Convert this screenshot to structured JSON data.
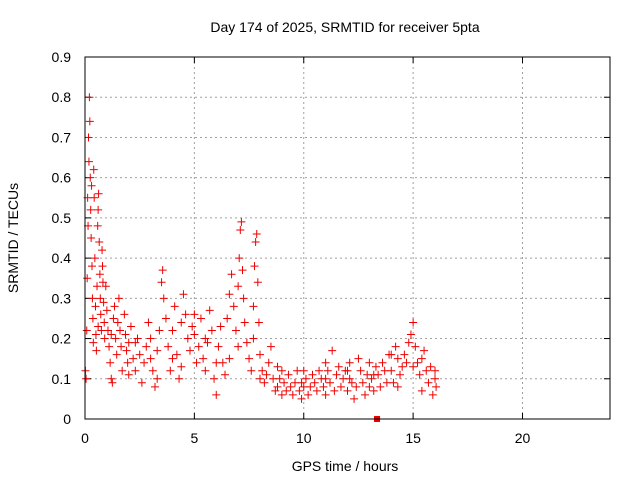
{
  "chart_data": {
    "type": "scatter",
    "title": "Day 174 of 2025, SRMTID for receiver 5pta",
    "xlabel": "GPS time / hours",
    "ylabel": "SRMTID / TECUs",
    "xlim": [
      0,
      24
    ],
    "ylim": [
      0,
      0.9
    ],
    "xticks": [
      0,
      5,
      10,
      15,
      20
    ],
    "yticks": [
      0,
      0.1,
      0.2,
      0.3,
      0.4,
      0.5,
      0.6,
      0.7,
      0.8,
      0.9
    ],
    "grid": true,
    "marker": "+",
    "color": "#ee0000",
    "series": [
      {
        "name": "SRMTID",
        "points": [
          [
            0.02,
            0.12
          ],
          [
            0.05,
            0.1
          ],
          [
            0.08,
            0.22
          ],
          [
            0.1,
            0.35
          ],
          [
            0.12,
            0.55
          ],
          [
            0.14,
            0.48
          ],
          [
            0.16,
            0.7
          ],
          [
            0.18,
            0.64
          ],
          [
            0.2,
            0.8
          ],
          [
            0.22,
            0.74
          ],
          [
            0.24,
            0.6
          ],
          [
            0.26,
            0.52
          ],
          [
            0.28,
            0.45
          ],
          [
            0.3,
            0.58
          ],
          [
            0.32,
            0.38
          ],
          [
            0.34,
            0.3
          ],
          [
            0.36,
            0.25
          ],
          [
            0.38,
            0.19
          ],
          [
            0.4,
            0.62
          ],
          [
            0.42,
            0.55
          ],
          [
            0.45,
            0.4
          ],
          [
            0.48,
            0.28
          ],
          [
            0.5,
            0.21
          ],
          [
            0.52,
            0.17
          ],
          [
            0.55,
            0.33
          ],
          [
            0.58,
            0.48
          ],
          [
            0.6,
            0.52
          ],
          [
            0.62,
            0.56
          ],
          [
            0.65,
            0.44
          ],
          [
            0.68,
            0.36
          ],
          [
            0.7,
            0.3
          ],
          [
            0.72,
            0.26
          ],
          [
            0.75,
            0.22
          ],
          [
            0.78,
            0.42
          ],
          [
            0.8,
            0.38
          ],
          [
            0.82,
            0.34
          ],
          [
            0.85,
            0.29
          ],
          [
            0.88,
            0.24
          ],
          [
            0.9,
            0.2
          ],
          [
            0.95,
            0.33
          ],
          [
            1.0,
            0.27
          ],
          [
            1.05,
            0.22
          ],
          [
            1.1,
            0.18
          ],
          [
            1.15,
            0.14
          ],
          [
            1.2,
            0.1
          ],
          [
            1.25,
            0.09
          ],
          [
            1.3,
            0.25
          ],
          [
            1.35,
            0.28
          ],
          [
            1.4,
            0.2
          ],
          [
            1.45,
            0.16
          ],
          [
            1.5,
            0.24
          ],
          [
            1.55,
            0.3
          ],
          [
            1.6,
            0.22
          ],
          [
            1.65,
            0.18
          ],
          [
            1.7,
            0.12
          ],
          [
            1.8,
            0.26
          ],
          [
            1.85,
            0.21
          ],
          [
            1.9,
            0.17
          ],
          [
            1.95,
            0.14
          ],
          [
            2.0,
            0.19
          ],
          [
            2.1,
            0.23
          ],
          [
            2.2,
            0.15
          ],
          [
            2.3,
            0.12
          ],
          [
            2.4,
            0.2
          ],
          [
            2.5,
            0.16
          ],
          [
            2.6,
            0.09
          ],
          [
            2.7,
            0.14
          ],
          [
            2.8,
            0.18
          ],
          [
            2.9,
            0.24
          ],
          [
            3.0,
            0.2
          ],
          [
            3.1,
            0.12
          ],
          [
            3.2,
            0.08
          ],
          [
            3.3,
            0.17
          ],
          [
            3.4,
            0.22
          ],
          [
            3.5,
            0.34
          ],
          [
            3.55,
            0.37
          ],
          [
            3.6,
            0.3
          ],
          [
            3.7,
            0.25
          ],
          [
            3.8,
            0.18
          ],
          [
            3.9,
            0.12
          ],
          [
            4.0,
            0.22
          ],
          [
            4.1,
            0.28
          ],
          [
            4.2,
            0.16
          ],
          [
            4.3,
            0.1
          ],
          [
            4.4,
            0.24
          ],
          [
            4.5,
            0.31
          ],
          [
            4.6,
            0.26
          ],
          [
            4.7,
            0.2
          ],
          [
            4.8,
            0.17
          ],
          [
            4.9,
            0.23
          ],
          [
            5.0,
            0.21
          ],
          [
            5.1,
            0.14
          ],
          [
            5.2,
            0.18
          ],
          [
            5.3,
            0.25
          ],
          [
            5.4,
            0.15
          ],
          [
            5.5,
            0.12
          ],
          [
            5.6,
            0.19
          ],
          [
            5.7,
            0.27
          ],
          [
            5.8,
            0.22
          ],
          [
            5.9,
            0.1
          ],
          [
            6.0,
            0.06
          ],
          [
            6.1,
            0.18
          ],
          [
            6.2,
            0.23
          ],
          [
            6.3,
            0.14
          ],
          [
            6.4,
            0.11
          ],
          [
            6.5,
            0.25
          ],
          [
            6.6,
            0.31
          ],
          [
            6.7,
            0.36
          ],
          [
            6.8,
            0.28
          ],
          [
            6.9,
            0.22
          ],
          [
            7.0,
            0.33
          ],
          [
            7.05,
            0.4
          ],
          [
            7.1,
            0.47
          ],
          [
            7.15,
            0.49
          ],
          [
            7.2,
            0.37
          ],
          [
            7.25,
            0.3
          ],
          [
            7.3,
            0.24
          ],
          [
            7.4,
            0.19
          ],
          [
            7.5,
            0.15
          ],
          [
            7.6,
            0.12
          ],
          [
            7.7,
            0.28
          ],
          [
            7.75,
            0.38
          ],
          [
            7.8,
            0.44
          ],
          [
            7.85,
            0.46
          ],
          [
            7.9,
            0.34
          ],
          [
            7.95,
            0.24
          ],
          [
            8.0,
            0.16
          ],
          [
            8.1,
            0.12
          ],
          [
            8.2,
            0.09
          ],
          [
            8.3,
            0.11
          ],
          [
            8.4,
            0.14
          ],
          [
            8.5,
            0.18
          ],
          [
            8.6,
            0.1
          ],
          [
            8.7,
            0.07
          ],
          [
            8.8,
            0.13
          ],
          [
            8.9,
            0.1
          ],
          [
            9.0,
            0.12
          ],
          [
            9.1,
            0.09
          ],
          [
            9.2,
            0.07
          ],
          [
            9.3,
            0.11
          ],
          [
            9.4,
            0.08
          ],
          [
            9.5,
            0.06
          ],
          [
            9.6,
            0.09
          ],
          [
            9.7,
            0.12
          ],
          [
            9.8,
            0.07
          ],
          [
            9.9,
            0.05
          ],
          [
            10.0,
            0.08
          ],
          [
            10.1,
            0.1
          ],
          [
            10.2,
            0.06
          ],
          [
            10.3,
            0.08
          ],
          [
            10.4,
            0.11
          ],
          [
            10.5,
            0.09
          ],
          [
            10.6,
            0.07
          ],
          [
            10.7,
            0.12
          ],
          [
            10.8,
            0.1
          ],
          [
            10.9,
            0.08
          ],
          [
            11.0,
            0.14
          ],
          [
            11.1,
            0.12
          ],
          [
            11.2,
            0.09
          ],
          [
            11.3,
            0.17
          ],
          [
            11.4,
            0.07
          ],
          [
            11.5,
            0.11
          ],
          [
            11.6,
            0.13
          ],
          [
            11.7,
            0.08
          ],
          [
            11.8,
            0.1
          ],
          [
            11.9,
            0.12
          ],
          [
            12.0,
            0.07
          ],
          [
            12.1,
            0.14
          ],
          [
            12.2,
            0.09
          ],
          [
            12.3,
            0.05
          ],
          [
            12.4,
            0.08
          ],
          [
            12.5,
            0.15
          ],
          [
            12.6,
            0.12
          ],
          [
            12.7,
            0.09
          ],
          [
            12.8,
            0.06
          ],
          [
            12.9,
            0.11
          ],
          [
            13.0,
            0.14
          ],
          [
            13.1,
            0.1
          ],
          [
            13.2,
            0.07
          ],
          [
            13.3,
            0.13
          ],
          [
            13.4,
            0.11
          ],
          [
            13.5,
            0.08
          ],
          [
            13.6,
            0.14
          ],
          [
            13.7,
            0.12
          ],
          [
            13.8,
            0.09
          ],
          [
            13.9,
            0.16
          ],
          [
            14.0,
            0.12
          ],
          [
            14.1,
            0.09
          ],
          [
            14.2,
            0.18
          ],
          [
            14.3,
            0.15
          ],
          [
            14.4,
            0.11
          ],
          [
            14.5,
            0.13
          ],
          [
            14.6,
            0.16
          ],
          [
            14.7,
            0.14
          ],
          [
            14.8,
            0.19
          ],
          [
            14.9,
            0.21
          ],
          [
            15.0,
            0.24
          ],
          [
            15.1,
            0.18
          ],
          [
            15.2,
            0.14
          ],
          [
            15.3,
            0.11
          ],
          [
            15.4,
            0.15
          ],
          [
            15.5,
            0.17
          ],
          [
            15.6,
            0.12
          ],
          [
            15.7,
            0.09
          ],
          [
            15.8,
            0.13
          ],
          [
            15.9,
            0.06
          ],
          [
            16.0,
            0.1
          ],
          [
            16.05,
            0.08
          ],
          [
            0.6,
            0.23
          ],
          [
            1.2,
            0.21
          ],
          [
            2.3,
            0.19
          ],
          [
            3.3,
            0.1
          ],
          [
            4.4,
            0.13
          ],
          [
            5.5,
            0.2
          ],
          [
            6.6,
            0.15
          ],
          [
            7.7,
            0.2
          ],
          [
            8.8,
            0.08
          ],
          [
            9.9,
            0.09
          ],
          [
            11.0,
            0.06
          ],
          [
            12.1,
            0.1
          ],
          [
            13.2,
            0.11
          ],
          [
            14.3,
            0.08
          ],
          [
            15.4,
            0.07
          ],
          [
            2.0,
            0.11
          ],
          [
            4.0,
            0.15
          ],
          [
            6.0,
            0.14
          ],
          [
            8.0,
            0.1
          ],
          [
            10.0,
            0.12
          ],
          [
            12.0,
            0.12
          ],
          [
            14.0,
            0.16
          ],
          [
            3.0,
            0.15
          ],
          [
            5.0,
            0.26
          ],
          [
            7.0,
            0.18
          ],
          [
            9.0,
            0.06
          ],
          [
            11.0,
            0.1
          ],
          [
            13.0,
            0.08
          ],
          [
            15.0,
            0.13
          ],
          [
            16.0,
            0.12
          ]
        ]
      },
      {
        "name": "filled-square",
        "marker": "square",
        "points": [
          [
            13.35,
            0.0
          ]
        ]
      }
    ]
  }
}
